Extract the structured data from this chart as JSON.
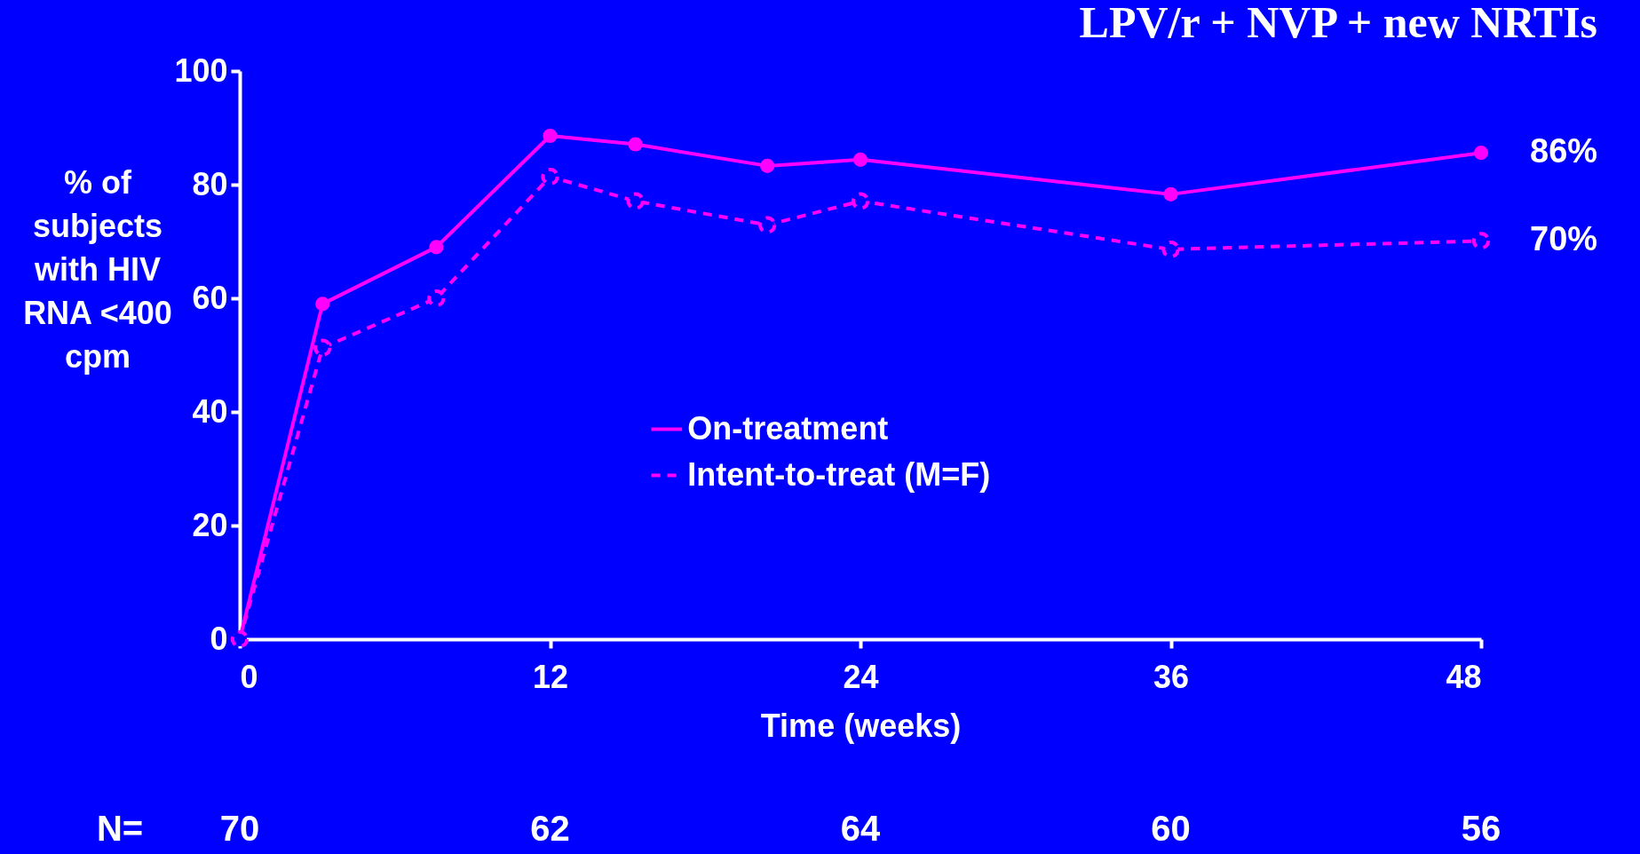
{
  "chart_data": {
    "type": "line",
    "title": "LPV/r + NVP + new NRTIs",
    "xlabel": "Time (weeks)",
    "ylabel": "% of subjects with HIV RNA <400 cpm",
    "x": [
      0,
      3.2,
      7.6,
      12,
      15.3,
      20.4,
      24,
      36,
      48
    ],
    "series": [
      {
        "name": "On-treatment",
        "color": "#ff00ff",
        "line_style": "solid",
        "marker": "circle",
        "values": [
          0,
          59,
          69,
          88.6,
          87.1,
          83.3,
          84.4,
          78.3,
          85.6
        ],
        "value_labels": [
          null,
          null,
          null,
          null,
          null,
          null,
          null,
          null,
          "86%"
        ]
      },
      {
        "name": "Intent-to-treat (M=F)",
        "color": "#ff00ff",
        "line_style": "dashed",
        "marker": "circle",
        "values": [
          0,
          51.3,
          60,
          81.4,
          77.1,
          72.9,
          77.1,
          68.6,
          70.1
        ],
        "value_labels": [
          null,
          null,
          null,
          null,
          null,
          null,
          null,
          null,
          "70%"
        ]
      }
    ],
    "xlim": [
      0,
      48
    ],
    "xticks": [
      0,
      12,
      24,
      36,
      48
    ],
    "ylim": [
      0,
      100
    ],
    "yticks": [
      0,
      20,
      40,
      60,
      80,
      100
    ],
    "grid": false,
    "legend": "center",
    "annotations": [
      "N=",
      "70",
      "62",
      "64",
      "60",
      "56"
    ]
  }
}
